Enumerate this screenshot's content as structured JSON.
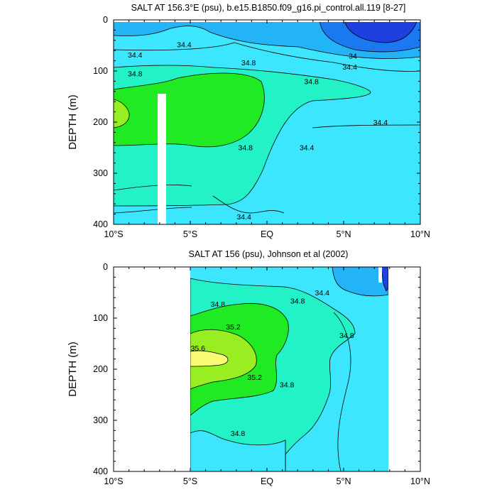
{
  "chart_data": [
    {
      "type": "contour",
      "title": "SALT AT 156.3°E (psu), b.e15.B1850.f09_g16.pi_control.all.119 [8-27]",
      "ylabel": "DEPTH (m)",
      "xlim": [
        -10,
        10
      ],
      "ylim": [
        0,
        400
      ],
      "y_inverted": true,
      "xtick_values": [
        -10,
        -5,
        0,
        5,
        10
      ],
      "xtick_labels": [
        "10°S",
        "5°S",
        "EQ",
        "5°N",
        "10°N"
      ],
      "ytick_values": [
        0,
        100,
        200,
        300,
        400
      ],
      "ytick_labels": [
        "0",
        "100",
        "200",
        "300",
        "400"
      ],
      "data_extent_x": [
        -10,
        10
      ],
      "missing_strip_x": [
        -7,
        -6.5
      ],
      "missing_strip_depth": [
        145,
        400
      ],
      "contour_labels": [
        {
          "text": "34.4",
          "x": -5.4,
          "depth": 48
        },
        {
          "text": "34.4",
          "x": -8.6,
          "depth": 68
        },
        {
          "text": "34.8",
          "x": -8.6,
          "depth": 105
        },
        {
          "text": "34.8",
          "x": -1.2,
          "depth": 83
        },
        {
          "text": "34.8",
          "x": 2.9,
          "depth": 120
        },
        {
          "text": "34",
          "x": 5.6,
          "depth": 70
        },
        {
          "text": "34.4",
          "x": 5.4,
          "depth": 92
        },
        {
          "text": "34.8",
          "x": -1.4,
          "depth": 249
        },
        {
          "text": "34.4",
          "x": 2.6,
          "depth": 249
        },
        {
          "text": "34.4",
          "x": 7.4,
          "depth": 200
        },
        {
          "text": "34.4",
          "x": -1.5,
          "depth": 385
        }
      ]
    },
    {
      "type": "contour",
      "title": "SALT AT 156 (psu), Johnson et al (2002)",
      "ylabel": "DEPTH (m)",
      "xlim": [
        -10,
        10
      ],
      "ylim": [
        0,
        400
      ],
      "y_inverted": true,
      "xtick_values": [
        -10,
        -5,
        0,
        5,
        10
      ],
      "xtick_labels": [
        "10°S",
        "5°S",
        "EQ",
        "5°N",
        "10°N"
      ],
      "ytick_values": [
        0,
        100,
        200,
        300,
        400
      ],
      "ytick_labels": [
        "0",
        "100",
        "200",
        "300",
        "400"
      ],
      "data_extent_x": [
        -5,
        8
      ],
      "contour_labels": [
        {
          "text": "34.4",
          "x": 3.6,
          "depth": 50
        },
        {
          "text": "34.8",
          "x": -3.2,
          "depth": 72
        },
        {
          "text": "34.8",
          "x": 2.0,
          "depth": 66
        },
        {
          "text": "35.2",
          "x": -2.2,
          "depth": 117
        },
        {
          "text": "34.8",
          "x": 5.2,
          "depth": 133
        },
        {
          "text": "35.6",
          "x": -4.5,
          "depth": 158
        },
        {
          "text": "35.2",
          "x": -0.8,
          "depth": 215
        },
        {
          "text": "34.8",
          "x": 1.3,
          "depth": 230
        },
        {
          "text": "34.8",
          "x": -1.9,
          "depth": 325
        }
      ]
    }
  ],
  "colors": {
    "s33": "#1f3fe0",
    "s336": "#1a78f0",
    "s34": "#23b4f7",
    "s344": "#3ce6fe",
    "s348": "#22f2c6",
    "s352": "#20ea22",
    "s356": "#99ee22",
    "s36": "#f9fa73",
    "border": "#000000",
    "background": "#ffffff"
  }
}
